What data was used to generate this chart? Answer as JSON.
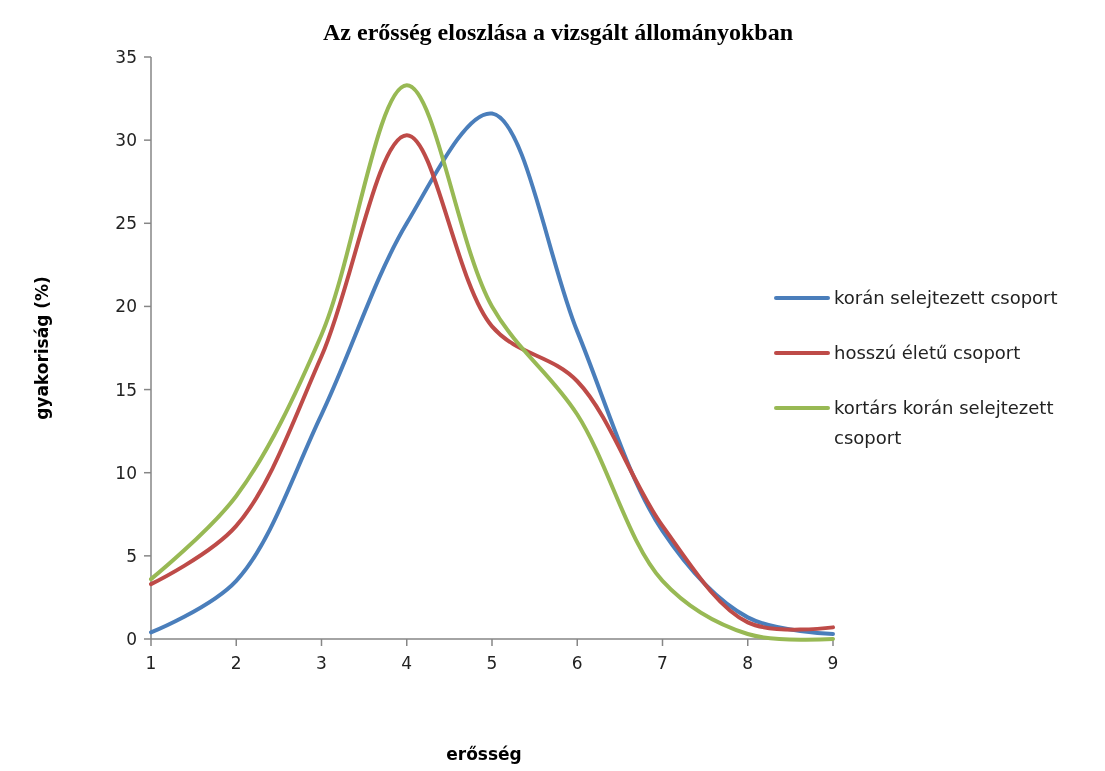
{
  "chart_data": {
    "type": "line",
    "title": "Az erősség  eloszlása a vizsgált állományokban",
    "xlabel": "erősség",
    "ylabel": "gyakoriság (%)",
    "x": [
      1,
      2,
      3,
      4,
      5,
      6,
      7,
      8,
      9
    ],
    "xlim": [
      1,
      9
    ],
    "xticks": [
      1,
      2,
      3,
      4,
      5,
      6,
      7,
      8,
      9
    ],
    "ylim": [
      0,
      35
    ],
    "yticks": [
      0,
      5,
      10,
      15,
      20,
      25,
      30,
      35
    ],
    "grid": false,
    "legend": "right",
    "marker": "none",
    "line_style": "solid",
    "series": [
      {
        "name": "korán selejtezett  csoport",
        "color": "#4a7ebb",
        "values": [
          0.4,
          3.5,
          13.5,
          25,
          31.6,
          18.5,
          6.5,
          1.3,
          0.3
        ]
      },
      {
        "name": "hosszú életű csoport",
        "color": "#be4b48",
        "values": [
          3.3,
          6.8,
          17,
          30.3,
          18.8,
          15.5,
          6.8,
          1,
          0.7
        ]
      },
      {
        "name": "kortárs korán selejtezett csoport",
        "color": "#98b954",
        "values": [
          3.6,
          8.6,
          18.3,
          33.3,
          20,
          13.5,
          3.5,
          0.3,
          0
        ]
      }
    ]
  }
}
